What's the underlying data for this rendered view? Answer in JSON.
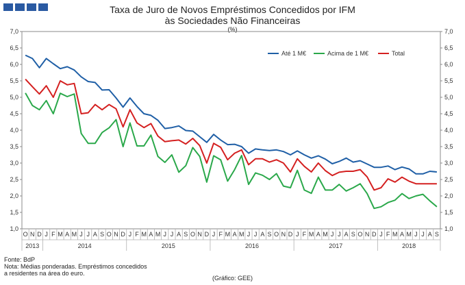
{
  "header": {
    "title_line1": "Taxa de Juro de Novos Empréstimos Concedidos por IFM",
    "title_line2": "às Sociedades Não Financeiras",
    "unit": "(%)"
  },
  "footer": {
    "source": "Fonte: BdP",
    "note_line1": "Nota: Médias ponderadas.  Empréstimos concedidos",
    "note_line2": "a residentes na área do euro.",
    "credit": "(Gráfico: GEE)"
  },
  "chart_data": {
    "type": "line",
    "title": "Taxa de Juro de Novos Empréstimos Concedidos por IFM às Sociedades Não Financeiras",
    "ylabel": "(%)",
    "ylim": [
      1.0,
      7.0
    ],
    "yticks": [
      "1,0",
      "1,5",
      "2,0",
      "2,5",
      "3,0",
      "3,5",
      "4,0",
      "4,5",
      "5,0",
      "5,5",
      "6,0",
      "6,5",
      "7,0"
    ],
    "grid": false,
    "legend_position": "top-right",
    "month_labels": [
      "O",
      "N",
      "D",
      "J",
      "F",
      "M",
      "A",
      "M",
      "J",
      "J",
      "A",
      "S",
      "O",
      "N",
      "D",
      "J",
      "F",
      "M",
      "A",
      "M",
      "J",
      "J",
      "A",
      "S",
      "O",
      "N",
      "D",
      "J",
      "F",
      "M",
      "A",
      "M",
      "J",
      "J",
      "A",
      "S",
      "O",
      "N",
      "D",
      "J",
      "F",
      "M",
      "A",
      "M",
      "J",
      "J",
      "A",
      "S",
      "O",
      "N",
      "D",
      "J",
      "F",
      "M",
      "A",
      "M",
      "J",
      "J",
      "A",
      "S"
    ],
    "year_labels": [
      "2013",
      "2014",
      "2015",
      "2016",
      "2017",
      "2018"
    ],
    "series": [
      {
        "name": "Até 1 M€",
        "color": "#1f5fa6",
        "values": [
          6.28,
          6.18,
          5.9,
          6.18,
          6.02,
          5.87,
          5.93,
          5.83,
          5.62,
          5.48,
          5.45,
          5.22,
          5.23,
          4.98,
          4.7,
          4.98,
          4.72,
          4.5,
          4.45,
          4.3,
          4.05,
          4.08,
          4.13,
          3.99,
          3.97,
          3.8,
          3.63,
          3.87,
          3.7,
          3.56,
          3.57,
          3.5,
          3.3,
          3.43,
          3.4,
          3.38,
          3.4,
          3.35,
          3.25,
          3.37,
          3.25,
          3.15,
          3.22,
          3.12,
          2.98,
          3.05,
          3.15,
          3.03,
          3.07,
          2.97,
          2.87,
          2.87,
          2.91,
          2.8,
          2.88,
          2.82,
          2.67,
          2.67,
          2.75,
          2.73
        ]
      },
      {
        "name": "Acima de 1 M€",
        "color": "#2aa84a",
        "values": [
          5.13,
          4.75,
          4.62,
          4.9,
          4.5,
          5.12,
          5.02,
          5.1,
          3.9,
          3.6,
          3.6,
          3.93,
          4.07,
          4.32,
          3.5,
          4.22,
          3.52,
          3.52,
          3.85,
          3.2,
          3.02,
          3.25,
          2.72,
          2.92,
          3.47,
          3.2,
          2.42,
          3.22,
          3.1,
          2.45,
          2.8,
          3.23,
          2.35,
          2.7,
          2.63,
          2.5,
          2.68,
          2.3,
          2.25,
          2.78,
          2.18,
          2.08,
          2.57,
          2.18,
          2.18,
          2.35,
          2.15,
          2.25,
          2.37,
          2.07,
          1.62,
          1.67,
          1.8,
          1.87,
          2.07,
          1.92,
          2.0,
          2.05,
          1.85,
          1.67
        ]
      },
      {
        "name": "Total",
        "color": "#d42020",
        "values": [
          5.55,
          5.32,
          5.1,
          5.35,
          5.0,
          5.5,
          5.38,
          5.42,
          4.5,
          4.53,
          4.78,
          4.62,
          4.78,
          4.65,
          4.1,
          4.62,
          4.22,
          4.08,
          4.2,
          3.82,
          3.65,
          3.68,
          3.7,
          3.58,
          3.75,
          3.53,
          3.0,
          3.6,
          3.48,
          3.1,
          3.3,
          3.4,
          2.95,
          3.13,
          3.13,
          3.03,
          3.1,
          3.0,
          2.73,
          3.13,
          2.9,
          2.73,
          3.0,
          2.77,
          2.62,
          2.72,
          2.75,
          2.75,
          2.8,
          2.58,
          2.18,
          2.25,
          2.52,
          2.42,
          2.57,
          2.45,
          2.37,
          2.37,
          2.37,
          2.37
        ]
      }
    ]
  }
}
